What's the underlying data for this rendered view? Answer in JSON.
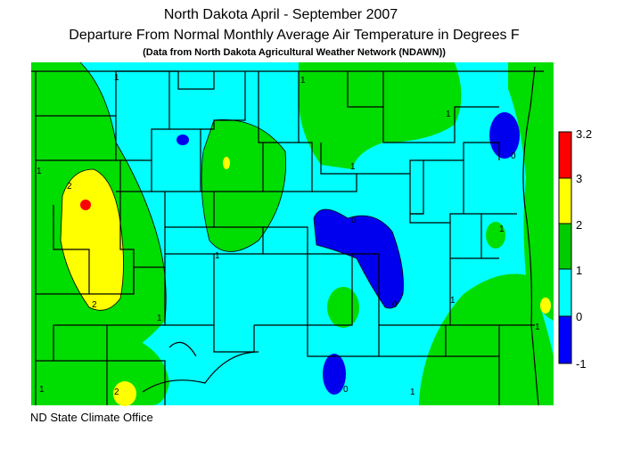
{
  "header": {
    "title": "North Dakota April - September 2007",
    "subtitle": "Departure From Normal Monthly Average Air Temperature in Degrees F",
    "source": "(Data from North Dakota Agricultural Weather Network (NDAWN))"
  },
  "footer": {
    "credit": "ND State Climate Office"
  },
  "legend": {
    "ticks": [
      "3.2",
      "3",
      "2",
      "1",
      "0",
      "-1"
    ],
    "colors": {
      "band_2_to_3.2": "#ff0000",
      "band_2_to_3": "#ffff00",
      "band_1_to_2": "#00cc00",
      "band_0_to_1": "#00ffff",
      "band_-1_to_0": "#0000ff"
    }
  },
  "map": {
    "colors": {
      "green": "#00dd00",
      "cyan": "#00ffff",
      "yellow": "#ffff00",
      "red": "#ff0000",
      "blue": "#0000ee",
      "county_line": "#000000"
    },
    "contour_labels": [
      "1",
      "2",
      "0"
    ]
  }
}
